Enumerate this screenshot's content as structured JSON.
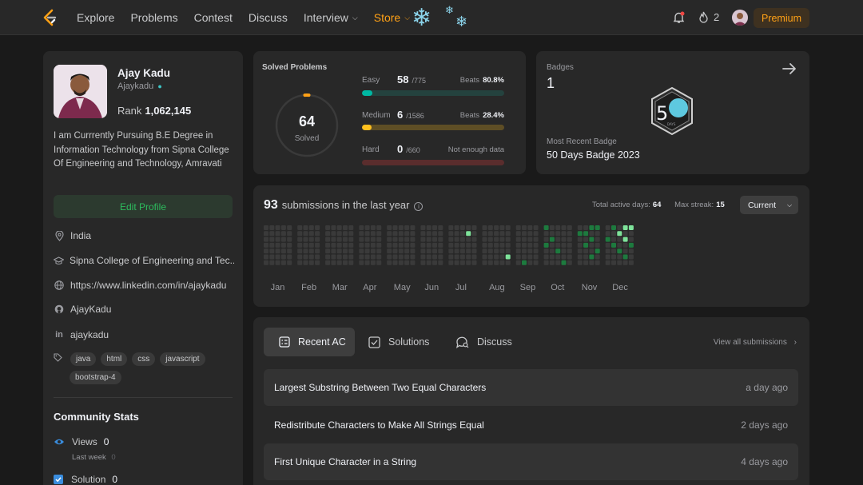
{
  "nav": {
    "links": [
      "Explore",
      "Problems",
      "Contest",
      "Discuss",
      "Interview",
      "Store"
    ],
    "streak_count": "2",
    "premium": "Premium"
  },
  "profile": {
    "name": "Ajay Kadu",
    "handle": "Ajaykadu",
    "rank_label": "Rank",
    "rank_value": "1,062,145",
    "bio": "I am Currrently Pursuing B.E Degree in Information Technology from Sipna College Of Engineering and Technology, Amravati",
    "edit_button": "Edit Profile",
    "location": "India",
    "school": "Sipna College of Engineering and Tec...",
    "website": "https://www.linkedin.com/in/ajaykadu",
    "github": "AjayKadu",
    "linkedin": "ajaykadu",
    "skills": [
      "java",
      "html",
      "css",
      "javascript",
      "bootstrap-4"
    ]
  },
  "community": {
    "title": "Community Stats",
    "views_label": "Views",
    "views_value": "0",
    "views_sub": "Last week",
    "views_sub_value": "0",
    "solution_label": "Solution",
    "solution_value": "0"
  },
  "solved": {
    "title": "Solved Problems",
    "total": "64",
    "total_label": "Solved",
    "easy": {
      "label": "Easy",
      "solved": "58",
      "total": "/775",
      "beats_label": "Beats",
      "beats": "80.8%",
      "fraction": 0.075
    },
    "medium": {
      "label": "Medium",
      "solved": "6",
      "total": "/1586",
      "beats_label": "Beats",
      "beats": "28.4%",
      "fraction": 0.004
    },
    "hard": {
      "label": "Hard",
      "solved": "0",
      "total": "/660",
      "note": "Not enough data",
      "fraction": 0
    }
  },
  "badges": {
    "title": "Badges",
    "count": "1",
    "recent_label": "Most Recent Badge",
    "recent_value": "50 Days Badge 2023"
  },
  "heatmap": {
    "count": "93",
    "title_suffix": "submissions in the last year",
    "active_label": "Total active days:",
    "active_value": "64",
    "streak_label": "Max streak:",
    "streak_value": "15",
    "selector": "Current",
    "months": [
      "Jan",
      "Feb",
      "Mar",
      "Apr",
      "May",
      "Jun",
      "Jul",
      "Aug",
      "Sep",
      "Oct",
      "Nov",
      "Dec"
    ]
  },
  "recent": {
    "tabs": [
      "Recent AC",
      "Solutions",
      "Discuss"
    ],
    "view_all": "View all submissions",
    "items": [
      {
        "title": "Largest Substring Between Two Equal Characters",
        "time": "a day ago"
      },
      {
        "title": "Redistribute Characters to Make All Strings Equal",
        "time": "2 days ago"
      },
      {
        "title": "First Unique Character in a String",
        "time": "4 days ago"
      }
    ]
  },
  "colors": {
    "brand": "#ffa116",
    "easy": "#00b8a3",
    "medium": "#ffc01e",
    "hard": "#ef4743",
    "heat_green": "#2cbb5d"
  }
}
